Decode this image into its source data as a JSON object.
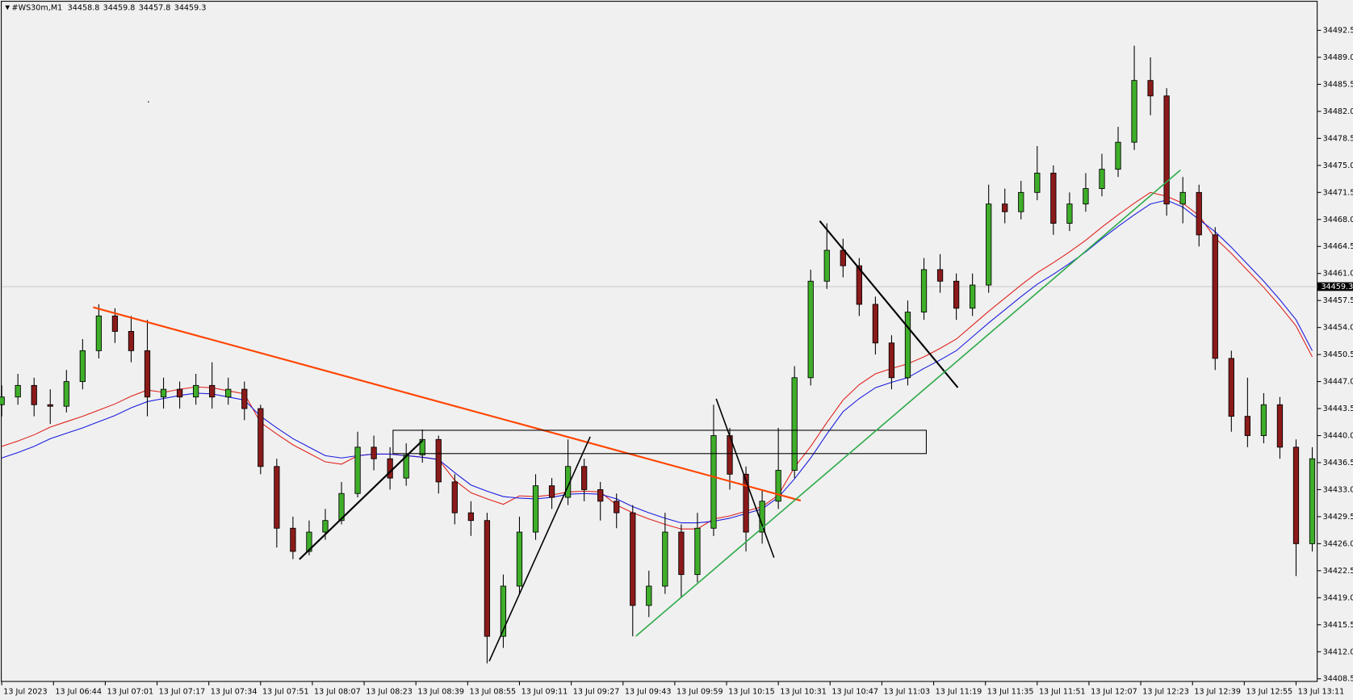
{
  "chart_data": {
    "type": "candlestick",
    "symbol": "#WS30m,M1",
    "header_open": 34458.8,
    "header_high": 34459.8,
    "header_low": 34457.8,
    "header_close": 34459.3,
    "last_price": 34459.3,
    "xlim": [
      0,
      406.5
    ],
    "ylim": [
      34408.1,
      34496.2
    ],
    "grid": false,
    "bull_color": "#3fae2a",
    "bear_color": "#8b1a1a",
    "xticks": [
      {
        "value": 0,
        "label": "13 Jul 2023"
      },
      {
        "value": 16,
        "label": "13 Jul 06:44"
      },
      {
        "value": 32,
        "label": "13 Jul 07:01"
      },
      {
        "value": 48,
        "label": "13 Jul 07:17"
      },
      {
        "value": 64,
        "label": "13 Jul 07:34"
      },
      {
        "value": 80,
        "label": "13 Jul 07:51"
      },
      {
        "value": 96,
        "label": "13 Jul 08:07"
      },
      {
        "value": 112,
        "label": "13 Jul 08:23"
      },
      {
        "value": 128,
        "label": "13 Jul 08:39"
      },
      {
        "value": 144,
        "label": "13 Jul 08:55"
      },
      {
        "value": 160,
        "label": "13 Jul 09:11"
      },
      {
        "value": 176,
        "label": "13 Jul 09:27"
      },
      {
        "value": 192,
        "label": "13 Jul 09:43"
      },
      {
        "value": 208,
        "label": "13 Jul 09:59"
      },
      {
        "value": 224,
        "label": "13 Jul 10:15"
      },
      {
        "value": 240,
        "label": "13 Jul 10:31"
      },
      {
        "value": 256,
        "label": "13 Jul 10:47"
      },
      {
        "value": 272,
        "label": "13 Jul 11:03"
      },
      {
        "value": 288,
        "label": "13 Jul 11:19"
      },
      {
        "value": 304,
        "label": "13 Jul 11:35"
      },
      {
        "value": 320,
        "label": "13 Jul 11:51"
      },
      {
        "value": 336,
        "label": "13 Jul 12:07"
      },
      {
        "value": 352,
        "label": "13 Jul 12:23"
      },
      {
        "value": 368,
        "label": "13 Jul 12:39"
      },
      {
        "value": 384,
        "label": "13 Jul 12:55"
      },
      {
        "value": 400,
        "label": "13 Jul 13:11"
      }
    ],
    "yticks": [
      34492.5,
      {
        "value": 34489,
        "label": "34489.0"
      },
      34485.5,
      {
        "value": 34482,
        "label": "34482.0"
      },
      34478.5,
      {
        "value": 34475,
        "label": "34475.0"
      },
      34471.5,
      {
        "value": 34468,
        "label": "34468.0"
      },
      34464.5,
      {
        "value": 34461,
        "label": "34461.0"
      },
      34457.5,
      {
        "value": 34454,
        "label": "34454.0"
      },
      34450.5,
      {
        "value": 34447,
        "label": "34447.0"
      },
      34443.5,
      {
        "value": 34440,
        "label": "34440.0"
      },
      34436.5,
      {
        "value": 34433,
        "label": "34433.0"
      },
      34429.5,
      {
        "value": 34426,
        "label": "34426.0"
      },
      34422.5,
      {
        "value": 34419,
        "label": "34419.0"
      },
      34415.5,
      {
        "value": 34412,
        "label": "34412.0"
      },
      34408.5
    ],
    "x": [
      0,
      5,
      10,
      15,
      20,
      25,
      30,
      35,
      40,
      45,
      50,
      55,
      60,
      65,
      70,
      75,
      80,
      85,
      90,
      95,
      100,
      105,
      110,
      115,
      120,
      125,
      130,
      135,
      140,
      145,
      150,
      155,
      160,
      165,
      170,
      175,
      180,
      185,
      190,
      195,
      200,
      205,
      210,
      215,
      220,
      225,
      230,
      235,
      240,
      245,
      250,
      255,
      260,
      265,
      270,
      275,
      280,
      285,
      290,
      295,
      300,
      305,
      310,
      315,
      320,
      325,
      330,
      335,
      340,
      345,
      350,
      355,
      360,
      365,
      370,
      375,
      380,
      385,
      390,
      395,
      400,
      405
    ],
    "open": [
      34444.0,
      34445.0,
      34446.5,
      34444.0,
      34443.8,
      34447.0,
      34451.0,
      34455.5,
      34453.5,
      34451.0,
      34445.0,
      34446.0,
      34445.0,
      34446.5,
      34445.0,
      34446.0,
      34443.5,
      34436.0,
      34428.0,
      34425.0,
      34427.5,
      34429.0,
      34432.5,
      34438.5,
      34437.0,
      34434.5,
      34437.5,
      34439.5,
      34434.0,
      34430.0,
      34429.0,
      34414.0,
      34420.5,
      34427.5,
      34433.5,
      34432.0,
      34436.0,
      34433.0,
      34431.5,
      34430.0,
      34418.0,
      34420.5,
      34427.5,
      34422.0,
      34428.0,
      34440.0,
      34435.0,
      34427.5,
      34431.5,
      34435.5,
      34447.5,
      34460.0,
      34464.0,
      34462.0,
      34457.0,
      34452.0,
      34447.5,
      34456.0,
      34461.5,
      34460.0,
      34456.5,
      34459.5,
      34470.0,
      34469.0,
      34471.5,
      34474.0,
      34467.5,
      34470.0,
      34472.0,
      34474.5,
      34478.0,
      34486.0,
      34484.0,
      34470.0,
      34471.5,
      34466.0,
      34450.0,
      34442.5,
      34440.0,
      34444.0,
      34438.5,
      34426.0
    ],
    "high": [
      34446.5,
      34448.0,
      34447.5,
      34446.0,
      34448.5,
      34452.5,
      34457.0,
      34456.5,
      34455.5,
      34455.0,
      34447.5,
      34447.0,
      34448.0,
      34449.5,
      34447.5,
      34447.0,
      34444.0,
      34437.0,
      34429.5,
      34429.0,
      34430.5,
      34434.0,
      34440.5,
      34440.0,
      34438.5,
      34439.0,
      34440.8,
      34440.0,
      34435.0,
      34431.5,
      34430.0,
      34422.0,
      34429.5,
      34435.0,
      34434.5,
      34439.5,
      34437.0,
      34434.0,
      34432.5,
      34431.0,
      34422.5,
      34430.0,
      34428.5,
      34430.0,
      34444.0,
      34441.0,
      34436.0,
      34433.0,
      34441.0,
      34449.0,
      34461.5,
      34467.5,
      34465.5,
      34463.0,
      34458.0,
      34453.0,
      34457.5,
      34463.0,
      34463.5,
      34461.0,
      34461.0,
      34472.5,
      34472.0,
      34473.0,
      34477.5,
      34475.0,
      34471.5,
      34474.0,
      34476.5,
      34480.0,
      34490.5,
      34489.0,
      34485.0,
      34473.5,
      34472.5,
      34467.0,
      34451.0,
      34447.5,
      34445.5,
      34445.0,
      34439.5,
      34438.5
    ],
    "low": [
      34442.5,
      34444.0,
      34442.5,
      34441.5,
      34443.0,
      34446.0,
      34450.0,
      34452.0,
      34449.5,
      34442.5,
      34443.5,
      34443.5,
      34444.0,
      34443.5,
      34444.0,
      34442.0,
      34435.0,
      34425.5,
      34424.0,
      34424.5,
      34426.5,
      34428.5,
      34432.0,
      34435.5,
      34433.0,
      34433.5,
      34436.5,
      34432.5,
      34428.5,
      34427.0,
      34410.5,
      34412.5,
      34419.5,
      34426.5,
      34430.5,
      34431.0,
      34431.5,
      34429.0,
      34428.0,
      34414.0,
      34416.5,
      34419.5,
      34419.0,
      34421.0,
      34427.0,
      34433.0,
      34425.0,
      34426.0,
      34430.5,
      34434.5,
      34446.5,
      34459.0,
      34460.5,
      34455.5,
      34450.5,
      34446.0,
      34446.5,
      34455.0,
      34458.5,
      34455.0,
      34455.5,
      34458.5,
      34467.5,
      34468.0,
      34470.5,
      34466.0,
      34466.5,
      34469.0,
      34471.0,
      34473.5,
      34477.0,
      34481.5,
      34468.5,
      34467.5,
      34464.5,
      34448.5,
      34440.5,
      34438.5,
      34439.0,
      34437.0,
      34421.8,
      34425.0
    ],
    "close": [
      34445.0,
      34446.5,
      34444.0,
      34443.8,
      34447.0,
      34451.0,
      34455.5,
      34453.5,
      34451.0,
      34445.0,
      34446.0,
      34445.0,
      34446.5,
      34445.0,
      34446.0,
      34443.5,
      34436.0,
      34428.0,
      34425.0,
      34427.5,
      34429.0,
      34432.5,
      34438.5,
      34437.0,
      34434.5,
      34437.5,
      34439.5,
      34434.0,
      34430.0,
      34429.0,
      34414.0,
      34420.5,
      34427.5,
      34433.5,
      34432.0,
      34436.0,
      34433.0,
      34431.5,
      34430.0,
      34418.0,
      34420.5,
      34427.5,
      34422.0,
      34428.0,
      34440.0,
      34435.0,
      34427.5,
      34431.5,
      34435.5,
      34447.5,
      34460.0,
      34464.0,
      34462.0,
      34457.0,
      34452.0,
      34447.5,
      34456.0,
      34461.5,
      34460.0,
      34456.5,
      34459.5,
      34470.0,
      34469.0,
      34471.5,
      34474.0,
      34467.5,
      34470.0,
      34472.0,
      34474.5,
      34478.0,
      34486.0,
      34484.0,
      34470.0,
      34471.5,
      34466.0,
      34450.0,
      34442.5,
      34440.0,
      34444.0,
      34438.5,
      34426.0,
      34437.0
    ],
    "series": [
      {
        "color": "#e0201a",
        "values": [
          34438.6,
          34439.3,
          34440.1,
          34441.1,
          34441.8,
          34442.5,
          34443.3,
          34444.1,
          34445.1,
          34445.9,
          34445.6,
          34446.0,
          34446.3,
          34446.2,
          34445.8,
          34445.4,
          34441.7,
          34440.2,
          34438.8,
          34437.7,
          34436.6,
          34436.3,
          34437.4,
          34437.6,
          34437.6,
          34437.4,
          34437.2,
          34436.9,
          34434.2,
          34432.6,
          34431.8,
          34431.1,
          34432.2,
          34432.1,
          34432.3,
          34432.7,
          34432.8,
          34432.7,
          34431.0,
          34430.0,
          34429.2,
          34428.5,
          34427.9,
          34427.9,
          34429.2,
          34429.6,
          34430.2,
          34430.8,
          34432.3,
          34435.9,
          34438.6,
          34441.7,
          34444.6,
          34446.6,
          34448.0,
          34448.7,
          34449.3,
          34450.2,
          34451.3,
          34452.5,
          34454.3,
          34456.1,
          34457.8,
          34459.5,
          34461.1,
          34462.4,
          34463.8,
          34465.3,
          34467.0,
          34468.6,
          34470.1,
          34471.5,
          34471.0,
          34470.1,
          34468.5,
          34465.6,
          34463.6,
          34461.4,
          34459.2,
          34456.8,
          34454.2,
          34450.2
        ]
      },
      {
        "color": "#1a1ae0",
        "values": [
          34437.1,
          34437.8,
          34438.6,
          34439.6,
          34440.3,
          34441.0,
          34441.8,
          34442.6,
          34443.6,
          34444.4,
          34444.8,
          34445.2,
          34445.5,
          34445.4,
          34445.0,
          34444.6,
          34442.5,
          34441.0,
          34439.6,
          34438.5,
          34437.4,
          34437.1,
          34437.4,
          34437.6,
          34437.6,
          34437.4,
          34437.2,
          34436.9,
          34435.2,
          34433.6,
          34432.8,
          34432.1,
          34431.9,
          34431.8,
          34432.0,
          34432.4,
          34432.5,
          34432.4,
          34431.8,
          34430.8,
          34430.0,
          34429.3,
          34428.7,
          34428.7,
          34428.9,
          34429.3,
          34429.9,
          34430.5,
          34432.0,
          34434.4,
          34437.1,
          34440.2,
          34443.1,
          34444.8,
          34446.2,
          34446.9,
          34447.5,
          34448.7,
          34449.8,
          34451.0,
          34452.8,
          34454.6,
          34456.3,
          34458.0,
          34459.6,
          34460.9,
          34462.3,
          34463.8,
          34465.5,
          34467.1,
          34468.6,
          34470.0,
          34470.5,
          34469.6,
          34468.0,
          34466.4,
          34464.4,
          34462.2,
          34460.0,
          34457.6,
          34455.0,
          34451.0
        ]
      }
    ]
  }
}
